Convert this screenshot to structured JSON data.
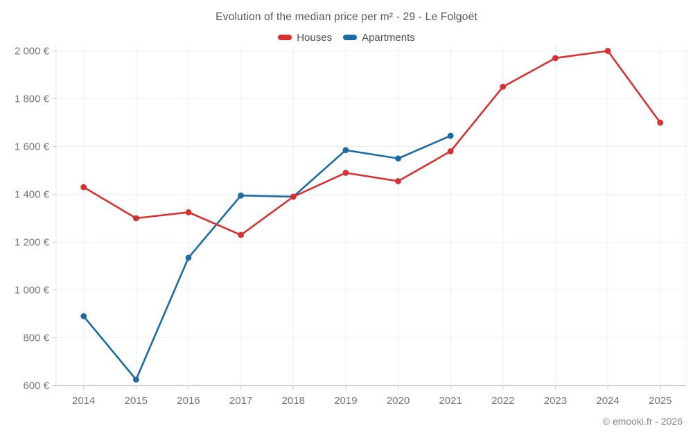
{
  "header": {
    "title": "Evolution of the median price per m² - 29 - Le Folgoët"
  },
  "footer": {
    "copyright": "© emooki.fr - 2026"
  },
  "chart_data": {
    "type": "line",
    "title": "Evolution of the median price per m² - 29 - Le Folgoët",
    "x": [
      2014,
      2015,
      2016,
      2017,
      2018,
      2019,
      2020,
      2021,
      2022,
      2023,
      2024,
      2025
    ],
    "series": [
      {
        "name": "Houses",
        "color": "#d8302f",
        "values": [
          1430,
          1300,
          1325,
          1230,
          1390,
          1490,
          1455,
          1580,
          1850,
          1970,
          2000,
          1700
        ]
      },
      {
        "name": "Apartments",
        "color": "#1a6ba3",
        "values": [
          890,
          625,
          1135,
          1395,
          1390,
          1585,
          1550,
          1645,
          null,
          null,
          null,
          null
        ]
      }
    ],
    "ylim": [
      600,
      2000
    ],
    "ytick_step": 200,
    "y_unit": "€",
    "ytick_labels": [
      "600 €",
      "800 €",
      "1 000 €",
      "1 200 €",
      "1 400 €",
      "1 600 €",
      "1 800 €",
      "2 000 €"
    ],
    "legend_position": "top",
    "grid": true
  }
}
